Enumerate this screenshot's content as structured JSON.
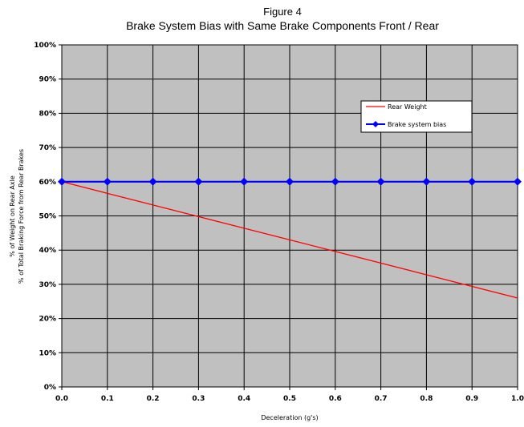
{
  "chart_data": {
    "type": "line",
    "title": "Figure 4",
    "subtitle": "Brake System Bias with Same Brake Components Front / Rear",
    "xlabel": "Deceleration (g's)",
    "ylabel_line1": "% of Weight on Rear Axle",
    "ylabel_line2": "% of Total Braking Force from Rear Brakes",
    "xlim": [
      0,
      1
    ],
    "ylim": [
      0,
      100
    ],
    "x_tick_labels": [
      "0.0",
      "0.1",
      "0.2",
      "0.3",
      "0.4",
      "0.5",
      "0.6",
      "0.7",
      "0.8",
      "0.9",
      "1.0"
    ],
    "y_tick_labels": [
      "0%",
      "10%",
      "20%",
      "30%",
      "40%",
      "50%",
      "60%",
      "70%",
      "80%",
      "90%",
      "100%"
    ],
    "y_ticks": [
      0,
      10,
      20,
      30,
      40,
      50,
      60,
      70,
      80,
      90,
      100
    ],
    "grid": true,
    "legend_position": "top-right",
    "plot_background": "#c0c0c0",
    "x": [
      0.0,
      0.1,
      0.2,
      0.3,
      0.4,
      0.5,
      0.6,
      0.7,
      0.8,
      0.9,
      1.0
    ],
    "series": [
      {
        "name": "Rear Weight",
        "color": "#ff0000",
        "marker": "none",
        "values": [
          60.0,
          56.6,
          53.2,
          49.8,
          46.4,
          43.0,
          39.6,
          36.2,
          32.8,
          29.4,
          26.0
        ]
      },
      {
        "name": "Brake system bias",
        "color": "#0000ff",
        "marker": "diamond",
        "values": [
          60,
          60,
          60,
          60,
          60,
          60,
          60,
          60,
          60,
          60,
          60
        ]
      }
    ]
  }
}
